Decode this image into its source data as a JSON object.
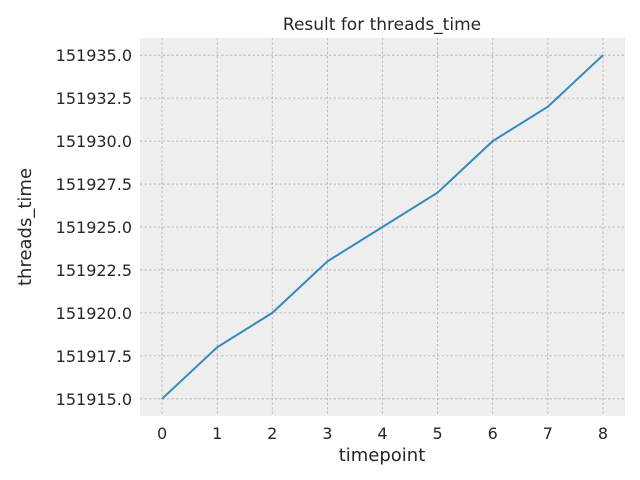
{
  "chart_data": {
    "type": "line",
    "title": "Result for threads_time",
    "xlabel": "timepoint",
    "ylabel": "threads_time",
    "x": [
      0,
      1,
      2,
      3,
      4,
      5,
      6,
      7,
      8
    ],
    "series": [
      {
        "values": [
          151915,
          151918,
          151920,
          151923,
          151925,
          151927,
          151930,
          151932,
          151935
        ]
      }
    ],
    "xticks": [
      "0",
      "1",
      "2",
      "3",
      "4",
      "5",
      "6",
      "7",
      "8"
    ],
    "yticks": [
      "151915.0",
      "151917.5",
      "151920.0",
      "151922.5",
      "151925.0",
      "151927.5",
      "151930.0",
      "151932.5",
      "151935.0"
    ],
    "xlim": [
      -0.4,
      8.4
    ],
    "ylim": [
      151914,
      151936
    ],
    "grid": true,
    "colors": {
      "line": "#348abd",
      "background": "#eeeeee",
      "grid": "#b2b2b2"
    }
  }
}
